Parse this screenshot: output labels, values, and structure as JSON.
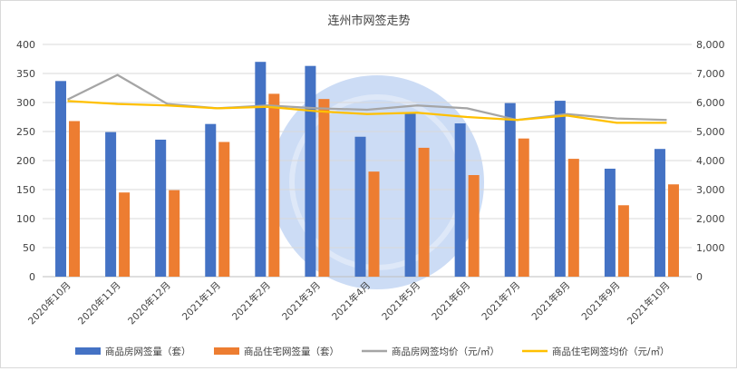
{
  "chart_data": {
    "type": "bar",
    "title": "连州市网签走势",
    "categories": [
      "2020年10月",
      "2020年11月",
      "2020年12月",
      "2021年1月",
      "2021年2月",
      "2021年3月",
      "2021年4月",
      "2021年5月",
      "2021年6月",
      "2021年7月",
      "2021年8月",
      "2021年9月",
      "2021年10月"
    ],
    "y_left": {
      "ylim": [
        0,
        400
      ],
      "ticks": [
        "0",
        "50",
        "100",
        "150",
        "200",
        "250",
        "300",
        "350",
        "400"
      ]
    },
    "y_right": {
      "ylim": [
        0,
        8000
      ],
      "ticks": [
        "0",
        "1,000",
        "2,000",
        "3,000",
        "4,000",
        "5,000",
        "6,000",
        "7,000",
        "8,000"
      ]
    },
    "series": [
      {
        "name": "商品房网签量（套）",
        "kind": "bar",
        "axis": "left",
        "color": "#4472c4",
        "values": [
          337,
          249,
          236,
          263,
          370,
          363,
          241,
          281,
          264,
          299,
          303,
          186,
          220
        ]
      },
      {
        "name": "商品住宅网签量（套）",
        "kind": "bar",
        "axis": "left",
        "color": "#ed7d31",
        "values": [
          268,
          145,
          149,
          232,
          315,
          306,
          181,
          222,
          175,
          238,
          203,
          123,
          159
        ]
      },
      {
        "name": "商品房网签均价（元/㎡）",
        "kind": "line",
        "axis": "right",
        "color": "#a5a5a5",
        "values": [
          6100,
          6950,
          5950,
          5800,
          5900,
          5800,
          5750,
          5900,
          5800,
          5400,
          5600,
          5450,
          5400
        ]
      },
      {
        "name": "商品住宅网签均价（元/㎡）",
        "kind": "line",
        "axis": "right",
        "color": "#ffc000",
        "values": [
          6050,
          5950,
          5900,
          5800,
          5850,
          5700,
          5600,
          5650,
          5500,
          5400,
          5550,
          5300,
          5300
        ]
      }
    ],
    "grid": true,
    "legend": "bottom"
  }
}
